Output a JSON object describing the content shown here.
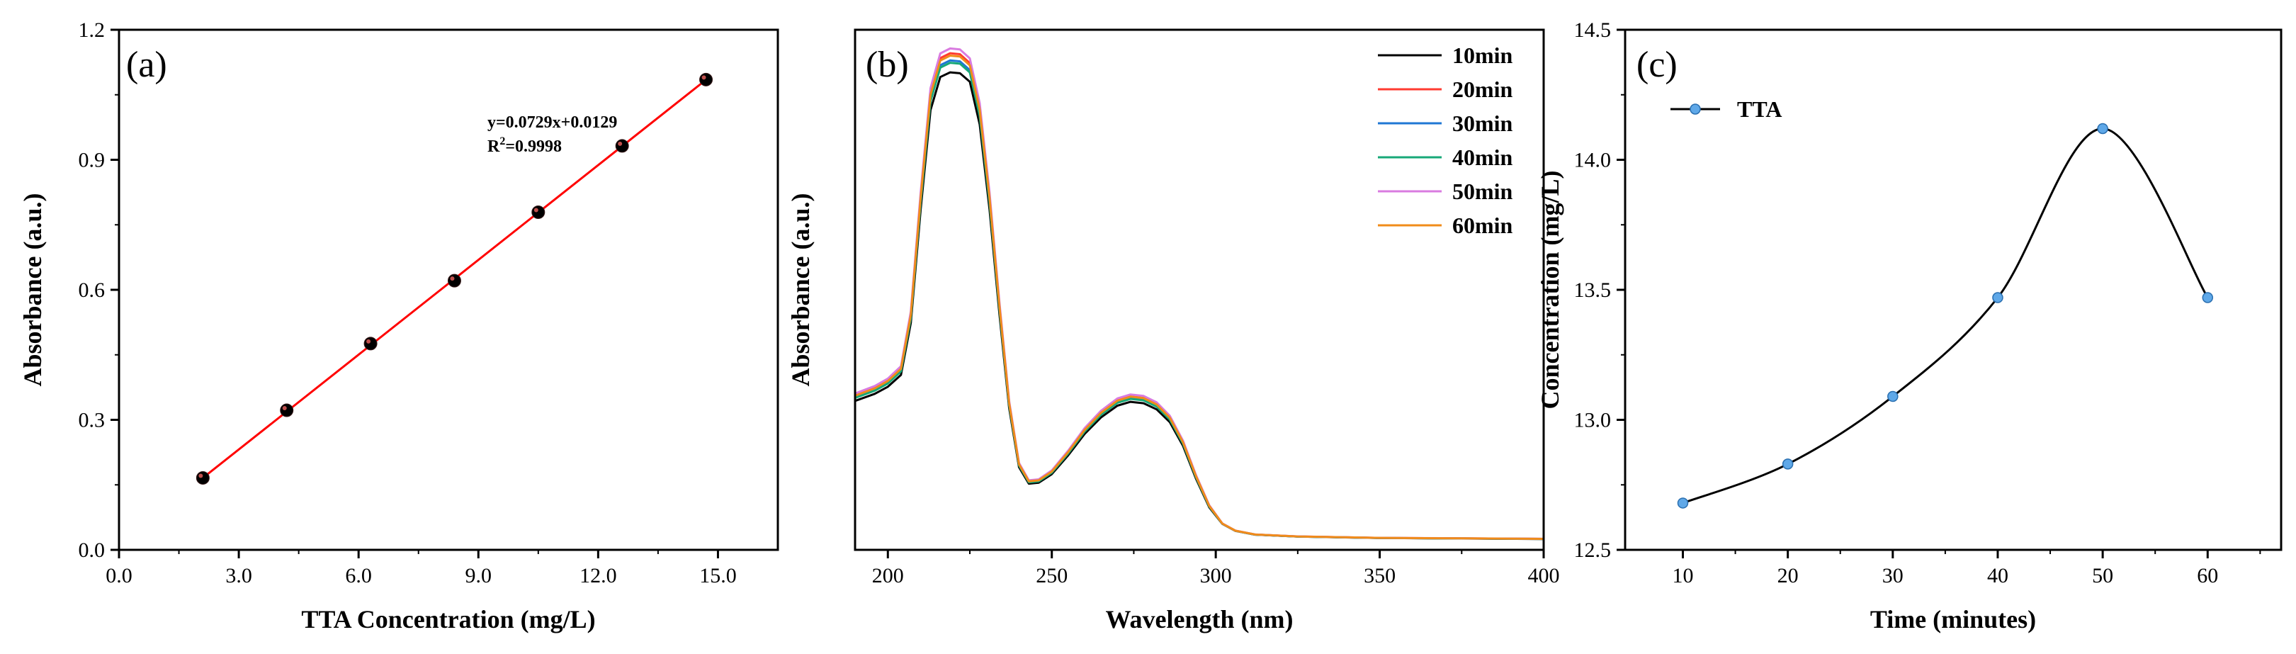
{
  "chart_data": [
    {
      "panel": "(a)",
      "type": "scatter",
      "xlabel": "TTA Concentration (mg/L)",
      "ylabel": "Absorbance (a.u.)",
      "xlim": [
        0,
        16.5
      ],
      "ylim": [
        0,
        1.2
      ],
      "xticks": [
        "0.0",
        "3.0",
        "6.0",
        "9.0",
        "12.0",
        "15.0"
      ],
      "yticks": [
        "0.0",
        "0.3",
        "0.6",
        "0.9",
        "1.2"
      ],
      "points": [
        {
          "x": 2.1,
          "y": 0.166
        },
        {
          "x": 4.2,
          "y": 0.322
        },
        {
          "x": 6.3,
          "y": 0.476
        },
        {
          "x": 8.4,
          "y": 0.621
        },
        {
          "x": 10.5,
          "y": 0.779
        },
        {
          "x": 12.6,
          "y": 0.932
        },
        {
          "x": 14.7,
          "y": 1.085
        }
      ],
      "fit": {
        "slope": 0.0729,
        "intercept": 0.0129,
        "x_range": [
          2.1,
          14.7
        ],
        "color": "#ff0000"
      },
      "equation": "y=0.0729x+0.0129",
      "r2_prefix": "R",
      "r2_sup": "2",
      "r2_value": "=0.9998"
    },
    {
      "panel": "(b)",
      "type": "line",
      "xlabel": "Wavelength (nm)",
      "ylabel": "Absorbance (a.u.)",
      "xlim": [
        190,
        400
      ],
      "ylim": [
        0,
        1.1
      ],
      "xticks": [
        "200",
        "250",
        "300",
        "350",
        "400"
      ],
      "series": [
        {
          "name": "10min",
          "color": "#000000",
          "scale": 1.0,
          "points": [
            [
              190,
              0.315
            ],
            [
              196,
              0.33
            ],
            [
              200,
              0.345
            ],
            [
              204,
              0.37
            ],
            [
              207,
              0.48
            ],
            [
              210,
              0.72
            ],
            [
              213,
              0.93
            ],
            [
              216,
              1.0
            ],
            [
              219,
              1.01
            ],
            [
              222,
              1.008
            ],
            [
              225,
              0.99
            ],
            [
              228,
              0.9
            ],
            [
              231,
              0.72
            ],
            [
              234,
              0.5
            ],
            [
              237,
              0.3
            ],
            [
              240,
              0.175
            ],
            [
              243,
              0.14
            ],
            [
              246,
              0.142
            ],
            [
              250,
              0.16
            ],
            [
              255,
              0.2
            ],
            [
              260,
              0.245
            ],
            [
              265,
              0.28
            ],
            [
              270,
              0.305
            ],
            [
              274,
              0.313
            ],
            [
              278,
              0.31
            ],
            [
              282,
              0.297
            ],
            [
              286,
              0.27
            ],
            [
              290,
              0.22
            ],
            [
              294,
              0.15
            ],
            [
              298,
              0.09
            ],
            [
              302,
              0.055
            ],
            [
              306,
              0.04
            ],
            [
              312,
              0.032
            ],
            [
              325,
              0.028
            ],
            [
              350,
              0.025
            ],
            [
              375,
              0.024
            ],
            [
              400,
              0.023
            ]
          ]
        },
        {
          "name": "20min",
          "color": "#ff3b30",
          "scale": 1.04,
          "points": [
            [
              190,
              0.315
            ],
            [
              196,
              0.33
            ],
            [
              200,
              0.345
            ],
            [
              204,
              0.37
            ],
            [
              207,
              0.48
            ],
            [
              210,
              0.72
            ],
            [
              213,
              0.93
            ],
            [
              216,
              1.0
            ],
            [
              219,
              1.01
            ],
            [
              222,
              1.008
            ],
            [
              225,
              0.99
            ],
            [
              228,
              0.9
            ],
            [
              231,
              0.72
            ],
            [
              234,
              0.5
            ],
            [
              237,
              0.3
            ],
            [
              240,
              0.175
            ],
            [
              243,
              0.14
            ],
            [
              246,
              0.142
            ],
            [
              250,
              0.16
            ],
            [
              255,
              0.2
            ],
            [
              260,
              0.245
            ],
            [
              265,
              0.28
            ],
            [
              270,
              0.305
            ],
            [
              274,
              0.313
            ],
            [
              278,
              0.31
            ],
            [
              282,
              0.297
            ],
            [
              286,
              0.27
            ],
            [
              290,
              0.22
            ],
            [
              294,
              0.15
            ],
            [
              298,
              0.09
            ],
            [
              302,
              0.055
            ],
            [
              306,
              0.04
            ],
            [
              312,
              0.032
            ],
            [
              325,
              0.028
            ],
            [
              350,
              0.025
            ],
            [
              375,
              0.024
            ],
            [
              400,
              0.023
            ]
          ]
        },
        {
          "name": "30min",
          "color": "#1f77d4",
          "scale": 1.025,
          "points": [
            [
              190,
              0.315
            ],
            [
              196,
              0.33
            ],
            [
              200,
              0.345
            ],
            [
              204,
              0.37
            ],
            [
              207,
              0.48
            ],
            [
              210,
              0.72
            ],
            [
              213,
              0.93
            ],
            [
              216,
              1.0
            ],
            [
              219,
              1.01
            ],
            [
              222,
              1.008
            ],
            [
              225,
              0.99
            ],
            [
              228,
              0.9
            ],
            [
              231,
              0.72
            ],
            [
              234,
              0.5
            ],
            [
              237,
              0.3
            ],
            [
              240,
              0.175
            ],
            [
              243,
              0.14
            ],
            [
              246,
              0.142
            ],
            [
              250,
              0.16
            ],
            [
              255,
              0.2
            ],
            [
              260,
              0.245
            ],
            [
              265,
              0.28
            ],
            [
              270,
              0.305
            ],
            [
              274,
              0.313
            ],
            [
              278,
              0.31
            ],
            [
              282,
              0.297
            ],
            [
              286,
              0.27
            ],
            [
              290,
              0.22
            ],
            [
              294,
              0.15
            ],
            [
              298,
              0.09
            ],
            [
              302,
              0.055
            ],
            [
              306,
              0.04
            ],
            [
              312,
              0.032
            ],
            [
              325,
              0.028
            ],
            [
              350,
              0.025
            ],
            [
              375,
              0.024
            ],
            [
              400,
              0.023
            ]
          ]
        },
        {
          "name": "40min",
          "color": "#17a878",
          "scale": 1.02,
          "points": [
            [
              190,
              0.315
            ],
            [
              196,
              0.33
            ],
            [
              200,
              0.345
            ],
            [
              204,
              0.37
            ],
            [
              207,
              0.48
            ],
            [
              210,
              0.72
            ],
            [
              213,
              0.93
            ],
            [
              216,
              1.0
            ],
            [
              219,
              1.01
            ],
            [
              222,
              1.008
            ],
            [
              225,
              0.99
            ],
            [
              228,
              0.9
            ],
            [
              231,
              0.72
            ],
            [
              234,
              0.5
            ],
            [
              237,
              0.3
            ],
            [
              240,
              0.175
            ],
            [
              243,
              0.14
            ],
            [
              246,
              0.142
            ],
            [
              250,
              0.16
            ],
            [
              255,
              0.2
            ],
            [
              260,
              0.245
            ],
            [
              265,
              0.28
            ],
            [
              270,
              0.305
            ],
            [
              274,
              0.313
            ],
            [
              278,
              0.31
            ],
            [
              282,
              0.297
            ],
            [
              286,
              0.27
            ],
            [
              290,
              0.22
            ],
            [
              294,
              0.15
            ],
            [
              298,
              0.09
            ],
            [
              302,
              0.055
            ],
            [
              306,
              0.04
            ],
            [
              312,
              0.032
            ],
            [
              325,
              0.028
            ],
            [
              350,
              0.025
            ],
            [
              375,
              0.024
            ],
            [
              400,
              0.023
            ]
          ]
        },
        {
          "name": "50min",
          "color": "#d97be0",
          "scale": 1.05,
          "points": [
            [
              190,
              0.315
            ],
            [
              196,
              0.33
            ],
            [
              200,
              0.345
            ],
            [
              204,
              0.37
            ],
            [
              207,
              0.48
            ],
            [
              210,
              0.72
            ],
            [
              213,
              0.93
            ],
            [
              216,
              1.0
            ],
            [
              219,
              1.01
            ],
            [
              222,
              1.008
            ],
            [
              225,
              0.99
            ],
            [
              228,
              0.9
            ],
            [
              231,
              0.72
            ],
            [
              234,
              0.5
            ],
            [
              237,
              0.3
            ],
            [
              240,
              0.175
            ],
            [
              243,
              0.14
            ],
            [
              246,
              0.142
            ],
            [
              250,
              0.16
            ],
            [
              255,
              0.2
            ],
            [
              260,
              0.245
            ],
            [
              265,
              0.28
            ],
            [
              270,
              0.305
            ],
            [
              274,
              0.313
            ],
            [
              278,
              0.31
            ],
            [
              282,
              0.297
            ],
            [
              286,
              0.27
            ],
            [
              290,
              0.22
            ],
            [
              294,
              0.15
            ],
            [
              298,
              0.09
            ],
            [
              302,
              0.055
            ],
            [
              306,
              0.04
            ],
            [
              312,
              0.032
            ],
            [
              325,
              0.028
            ],
            [
              350,
              0.025
            ],
            [
              375,
              0.024
            ],
            [
              400,
              0.023
            ]
          ]
        },
        {
          "name": "60min",
          "color": "#f08c1a",
          "scale": 1.035,
          "points": [
            [
              190,
              0.315
            ],
            [
              196,
              0.33
            ],
            [
              200,
              0.345
            ],
            [
              204,
              0.37
            ],
            [
              207,
              0.48
            ],
            [
              210,
              0.72
            ],
            [
              213,
              0.93
            ],
            [
              216,
              1.0
            ],
            [
              219,
              1.01
            ],
            [
              222,
              1.008
            ],
            [
              225,
              0.99
            ],
            [
              228,
              0.9
            ],
            [
              231,
              0.72
            ],
            [
              234,
              0.5
            ],
            [
              237,
              0.3
            ],
            [
              240,
              0.175
            ],
            [
              243,
              0.14
            ],
            [
              246,
              0.142
            ],
            [
              250,
              0.16
            ],
            [
              255,
              0.2
            ],
            [
              260,
              0.245
            ],
            [
              265,
              0.28
            ],
            [
              270,
              0.305
            ],
            [
              274,
              0.313
            ],
            [
              278,
              0.31
            ],
            [
              282,
              0.297
            ],
            [
              286,
              0.27
            ],
            [
              290,
              0.22
            ],
            [
              294,
              0.15
            ],
            [
              298,
              0.09
            ],
            [
              302,
              0.055
            ],
            [
              306,
              0.04
            ],
            [
              312,
              0.032
            ],
            [
              325,
              0.028
            ],
            [
              350,
              0.025
            ],
            [
              375,
              0.024
            ],
            [
              400,
              0.023
            ]
          ]
        }
      ],
      "legend_position": "top-right"
    },
    {
      "panel": "(c)",
      "type": "line",
      "xlabel": "Time (minutes)",
      "ylabel": "Concentration (mg/L)",
      "xlim": [
        4.5,
        67
      ],
      "ylim": [
        12.5,
        14.5
      ],
      "xticks": [
        "10",
        "20",
        "30",
        "40",
        "50",
        "60"
      ],
      "yticks": [
        "12.5",
        "13.0",
        "13.5",
        "14.0",
        "14.5"
      ],
      "series": [
        {
          "name": "TTA",
          "color": "#000000",
          "marker_color": "#5fa8e8",
          "x": [
            10,
            20,
            30,
            40,
            50,
            60
          ],
          "y": [
            12.68,
            12.83,
            13.09,
            13.47,
            14.12,
            13.47
          ]
        }
      ],
      "legend_position": "top-left"
    }
  ]
}
